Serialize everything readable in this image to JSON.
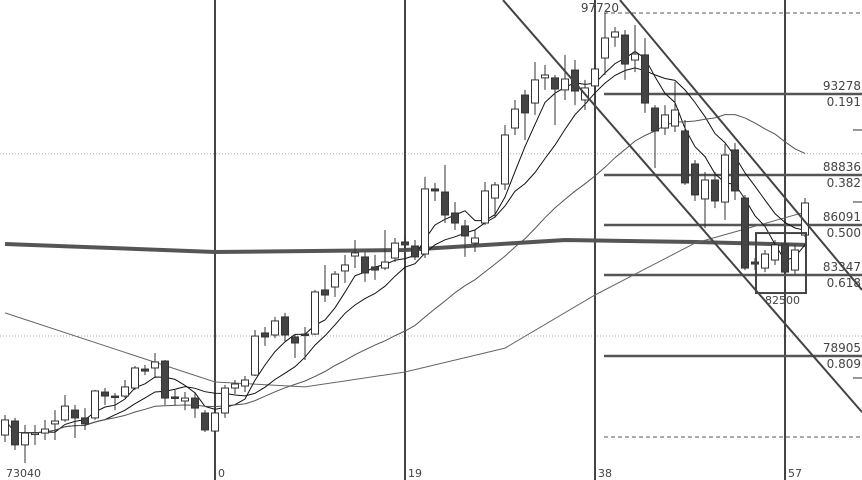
{
  "chart_data": {
    "type": "candlestick",
    "x_start_index": -21,
    "ohlc": [
      [
        74570,
        75670,
        74190,
        75400
      ],
      [
        75340,
        75510,
        73750,
        74030
      ],
      [
        74030,
        75120,
        73040,
        74680
      ],
      [
        74630,
        75120,
        74030,
        74680
      ],
      [
        74680,
        75400,
        74300,
        74900
      ],
      [
        75180,
        75940,
        74300,
        75340
      ],
      [
        75400,
        76770,
        75290,
        76160
      ],
      [
        75940,
        76220,
        74410,
        75510
      ],
      [
        75510,
        76050,
        74850,
        75180
      ],
      [
        75510,
        77040,
        75400,
        76990
      ],
      [
        76930,
        77150,
        76220,
        76710
      ],
      [
        76710,
        76880,
        75940,
        76660
      ],
      [
        76710,
        77590,
        76600,
        77210
      ],
      [
        77150,
        78360,
        77040,
        78250
      ],
      [
        78190,
        78410,
        77860,
        78080
      ],
      [
        78250,
        79070,
        77700,
        78580
      ],
      [
        78630,
        78690,
        76220,
        76600
      ],
      [
        76660,
        77040,
        76220,
        76600
      ],
      [
        76440,
        76930,
        75940,
        76600
      ],
      [
        76600,
        76930,
        75510,
        76050
      ],
      [
        75780,
        75940,
        74740,
        74850
      ],
      [
        74790,
        76490,
        74740,
        75780
      ],
      [
        75780,
        77320,
        75510,
        77150
      ],
      [
        77150,
        77590,
        76820,
        77370
      ],
      [
        77260,
        77810,
        76930,
        77590
      ],
      [
        77860,
        80330,
        77810,
        80000
      ],
      [
        80170,
        80500,
        79460,
        79950
      ],
      [
        80060,
        81050,
        79890,
        80830
      ],
      [
        81050,
        81270,
        79670,
        80060
      ],
      [
        79950,
        80110,
        78800,
        79620
      ],
      [
        80110,
        80500,
        78690,
        80060
      ],
      [
        80110,
        82530,
        80060,
        82420
      ],
      [
        82530,
        83900,
        81870,
        82250
      ],
      [
        82690,
        83570,
        82140,
        83400
      ],
      [
        83570,
        84450,
        82910,
        83900
      ],
      [
        84390,
        85270,
        83730,
        84560
      ],
      [
        84340,
        84610,
        82970,
        83460
      ],
      [
        83790,
        84450,
        83080,
        83620
      ],
      [
        83730,
        85820,
        83620,
        84060
      ],
      [
        84280,
        85380,
        84060,
        85100
      ],
      [
        85160,
        85490,
        84720,
        85000
      ],
      [
        84940,
        85270,
        84170,
        84340
      ],
      [
        84500,
        88730,
        84280,
        88070
      ],
      [
        88070,
        88400,
        87410,
        87960
      ],
      [
        87900,
        89380,
        86200,
        86640
      ],
      [
        86750,
        87350,
        85820,
        86200
      ],
      [
        86040,
        86370,
        84340,
        85490
      ],
      [
        85100,
        85820,
        84610,
        85380
      ],
      [
        86200,
        88450,
        86090,
        87960
      ],
      [
        87570,
        88450,
        86480,
        88290
      ],
      [
        88340,
        91580,
        88010,
        91030
      ],
      [
        91410,
        92950,
        91030,
        92450
      ],
      [
        93220,
        93500,
        90750,
        92240
      ],
      [
        92780,
        95030,
        92130,
        94050
      ],
      [
        94160,
        94870,
        93500,
        94320
      ],
      [
        94160,
        94320,
        91580,
        93550
      ],
      [
        93500,
        95420,
        92950,
        94100
      ],
      [
        94590,
        95140,
        92670,
        93440
      ],
      [
        92950,
        94050,
        92400,
        93610
      ],
      [
        93720,
        94870,
        93500,
        94650
      ],
      [
        95250,
        97720,
        94320,
        96350
      ],
      [
        96400,
        96950,
        95860,
        96680
      ],
      [
        96510,
        96790,
        94050,
        94920
      ],
      [
        95140,
        97060,
        94480,
        95470
      ],
      [
        95420,
        96350,
        92240,
        92780
      ],
      [
        92510,
        92670,
        89220,
        91250
      ],
      [
        91410,
        92670,
        91030,
        92130
      ],
      [
        91520,
        93940,
        91190,
        92400
      ],
      [
        91250,
        91850,
        88290,
        88400
      ],
      [
        89440,
        89660,
        87410,
        87740
      ],
      [
        87520,
        89000,
        85930,
        88560
      ],
      [
        88560,
        89000,
        87020,
        87410
      ],
      [
        87350,
        90540,
        86370,
        89930
      ],
      [
        90210,
        90590,
        87460,
        87960
      ],
      [
        87570,
        87740,
        83620,
        83730
      ],
      [
        84060,
        84280,
        83620,
        83950
      ],
      [
        83730,
        84720,
        83510,
        84500
      ],
      [
        84170,
        85270,
        83900,
        85000
      ],
      [
        85050,
        85270,
        83400,
        83510
      ],
      [
        83620,
        85000,
        83400,
        84720
      ],
      [
        85540,
        87570,
        85430,
        87300
      ]
    ],
    "moving_averages": {
      "computed_periods": [
        5,
        10,
        25
      ],
      "long_thin": [
        [
          -21,
          81270
        ],
        [
          0,
          77480
        ],
        [
          9,
          77210
        ],
        [
          19,
          78030
        ],
        [
          29,
          79340
        ],
        [
          38,
          82250
        ],
        [
          48,
          85100
        ],
        [
          59,
          86800
        ]
      ],
      "long_thick": [
        [
          -21,
          85050
        ],
        [
          0,
          84610
        ],
        [
          19,
          84720
        ],
        [
          35,
          85270
        ],
        [
          48,
          85160
        ],
        [
          59,
          85000
        ]
      ]
    },
    "vertical_markers": [
      {
        "index": 0,
        "label": "0"
      },
      {
        "index": 19,
        "label": "19"
      },
      {
        "index": 38,
        "label": "38"
      },
      {
        "index": 57,
        "label": "57"
      }
    ],
    "low_label": "73040",
    "fibonacci": {
      "start_index": 39,
      "high": 97720,
      "high_label": "97720",
      "low": 74463,
      "levels": [
        {
          "price": 93278,
          "price_label": "93278",
          "ratio_label": "0.191"
        },
        {
          "price": 88836,
          "price_label": "88836",
          "ratio_label": "0.382"
        },
        {
          "price": 86091,
          "price_label": "86091",
          "ratio_label": "0.500"
        },
        {
          "price": 83347,
          "price_label": "83347",
          "ratio_label": "0.618"
        },
        {
          "price": 78905,
          "price_label": "78905",
          "ratio_label": "0.809"
        }
      ]
    },
    "trendlines": [
      {
        "from": [
          28.8,
          98430
        ],
        "to": [
          64.7,
          75830
        ]
      },
      {
        "from": [
          40.5,
          98430
        ],
        "to": [
          64.7,
          82530
        ]
      }
    ],
    "box": {
      "from_index": 54.1,
      "to_index": 59.1,
      "top": 85650,
      "bottom": 82360,
      "label": "82500"
    },
    "gridlines": [
      90000,
      80000
    ],
    "colors": {
      "bear": "#444444",
      "bull": "#ffffff",
      "outline": "#333333",
      "levels": "#555555"
    }
  }
}
